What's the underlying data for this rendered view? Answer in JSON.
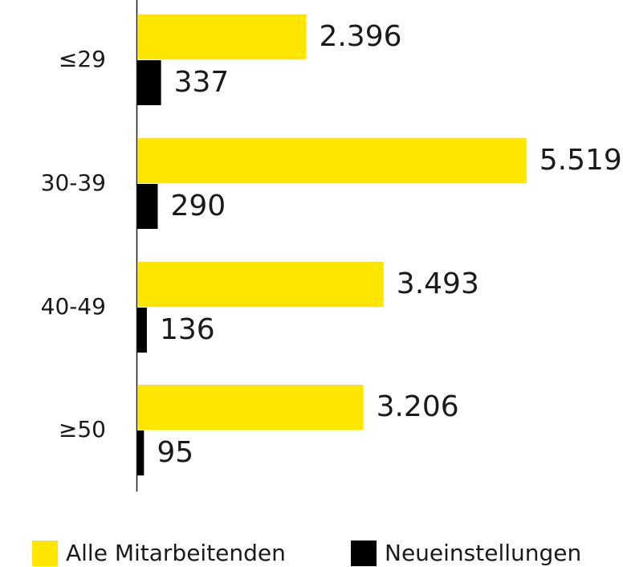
{
  "chart_data": {
    "type": "bar",
    "orientation": "horizontal",
    "categories": [
      "≤29",
      "30-39",
      "40-49",
      "≥50"
    ],
    "series": [
      {
        "name": "Alle Mitarbeitenden",
        "color": "#FFE600",
        "values": [
          2396,
          5519,
          3493,
          3206
        ],
        "value_labels": [
          "2.396",
          "5.519",
          "3.493",
          "3.206"
        ]
      },
      {
        "name": "Neueinstellungen",
        "color": "#000000",
        "values": [
          337,
          290,
          136,
          95
        ],
        "value_labels": [
          "337",
          "290",
          "136",
          "95"
        ]
      }
    ],
    "xlim": [
      0,
      6000
    ]
  }
}
